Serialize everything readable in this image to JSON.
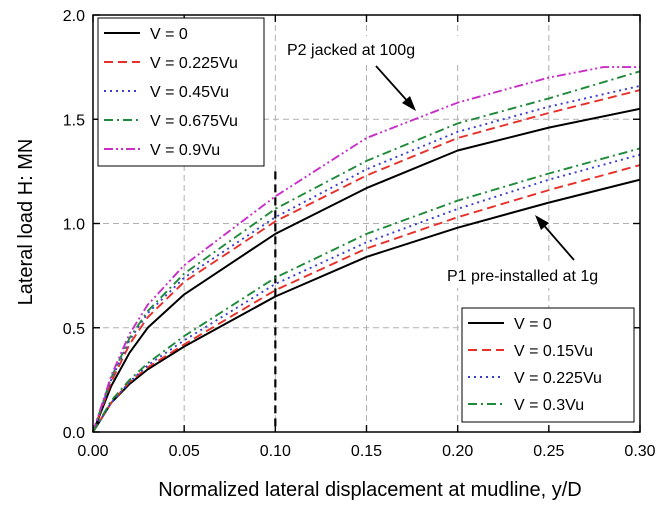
{
  "chart_data": {
    "type": "line",
    "xlabel": "Normalized lateral displacement at mudline, y/D",
    "ylabel": "Lateral load H: MN",
    "xlim": [
      0,
      0.3
    ],
    "ylim": [
      0,
      2.0
    ],
    "xticks": [
      "0.00",
      "0.05",
      "0.10",
      "0.15",
      "0.20",
      "0.25",
      "0.30"
    ],
    "yticks": [
      "0.0",
      "0.5",
      "1.0",
      "1.5",
      "2.0"
    ],
    "grid": true,
    "reference_line": {
      "x": 0.1,
      "style": "dashed",
      "color": "#000000"
    },
    "annotations": [
      {
        "text": "P2 jacked at 100g",
        "id": "p2"
      },
      {
        "text": "P1 pre-installed at 1g",
        "id": "p1"
      }
    ],
    "legends": [
      {
        "placement": "top-left",
        "entries": [
          "V = 0",
          "V = 0.225Vu",
          "V = 0.45Vu",
          "V = 0.675Vu",
          "V = 0.9Vu"
        ]
      },
      {
        "placement": "bottom-right",
        "entries": [
          "V = 0",
          "V = 0.15Vu",
          "V = 0.225Vu",
          "V = 0.3Vu"
        ]
      }
    ],
    "groups": [
      {
        "label": "P2 jacked at 100g",
        "series": [
          {
            "name": "V = 0",
            "color": "#000000",
            "dash": "solid",
            "x": [
              0,
              0.01,
              0.02,
              0.03,
              0.05,
              0.1,
              0.15,
              0.2,
              0.25,
              0.3
            ],
            "y": [
              0,
              0.22,
              0.38,
              0.5,
              0.66,
              0.95,
              1.17,
              1.35,
              1.46,
              1.55
            ]
          },
          {
            "name": "V = 0.225Vu",
            "color": "#e8302a",
            "dash": "dashed",
            "x": [
              0,
              0.01,
              0.02,
              0.03,
              0.05,
              0.1,
              0.15,
              0.2,
              0.25,
              0.3
            ],
            "y": [
              0,
              0.24,
              0.42,
              0.55,
              0.72,
              1.01,
              1.23,
              1.41,
              1.53,
              1.64
            ]
          },
          {
            "name": "V = 0.45Vu",
            "color": "#3b3bd6",
            "dash": "dotted",
            "x": [
              0,
              0.01,
              0.02,
              0.03,
              0.05,
              0.1,
              0.15,
              0.2,
              0.25,
              0.3
            ],
            "y": [
              0,
              0.25,
              0.44,
              0.57,
              0.74,
              1.03,
              1.26,
              1.44,
              1.56,
              1.66
            ]
          },
          {
            "name": "V = 0.675Vu",
            "color": "#1f8a3a",
            "dash": "dashdot",
            "x": [
              0,
              0.01,
              0.02,
              0.03,
              0.05,
              0.1,
              0.15,
              0.2,
              0.25,
              0.3
            ],
            "y": [
              0,
              0.26,
              0.45,
              0.58,
              0.76,
              1.07,
              1.3,
              1.48,
              1.6,
              1.73
            ]
          },
          {
            "name": "V = 0.9Vu",
            "color": "#c82fc8",
            "dash": "dashdotdot",
            "x": [
              0,
              0.01,
              0.02,
              0.03,
              0.05,
              0.1,
              0.15,
              0.2,
              0.25,
              0.28,
              0.3
            ],
            "y": [
              0,
              0.27,
              0.47,
              0.61,
              0.8,
              1.13,
              1.41,
              1.58,
              1.7,
              1.75,
              1.75
            ]
          }
        ]
      },
      {
        "label": "P1 pre-installed at 1g",
        "series": [
          {
            "name": "V = 0",
            "color": "#000000",
            "dash": "solid",
            "x": [
              0,
              0.01,
              0.02,
              0.03,
              0.05,
              0.1,
              0.15,
              0.2,
              0.25,
              0.3
            ],
            "y": [
              0,
              0.14,
              0.23,
              0.3,
              0.41,
              0.65,
              0.84,
              0.98,
              1.1,
              1.21
            ]
          },
          {
            "name": "V = 0.15Vu",
            "color": "#e8302a",
            "dash": "dashed",
            "x": [
              0,
              0.01,
              0.02,
              0.03,
              0.05,
              0.1,
              0.15,
              0.2,
              0.25,
              0.3
            ],
            "y": [
              0,
              0.14,
              0.24,
              0.31,
              0.42,
              0.68,
              0.88,
              1.03,
              1.16,
              1.28
            ]
          },
          {
            "name": "V = 0.225Vu",
            "color": "#3b3bd6",
            "dash": "dotted",
            "x": [
              0,
              0.01,
              0.02,
              0.03,
              0.05,
              0.1,
              0.15,
              0.2,
              0.25,
              0.3
            ],
            "y": [
              0,
              0.14,
              0.24,
              0.32,
              0.44,
              0.71,
              0.91,
              1.07,
              1.21,
              1.33
            ]
          },
          {
            "name": "V = 0.3Vu",
            "color": "#1f8a3a",
            "dash": "dashdot",
            "x": [
              0,
              0.01,
              0.02,
              0.03,
              0.05,
              0.1,
              0.15,
              0.2,
              0.25,
              0.3
            ],
            "y": [
              0,
              0.15,
              0.25,
              0.33,
              0.46,
              0.74,
              0.95,
              1.11,
              1.24,
              1.36
            ]
          }
        ]
      }
    ]
  }
}
